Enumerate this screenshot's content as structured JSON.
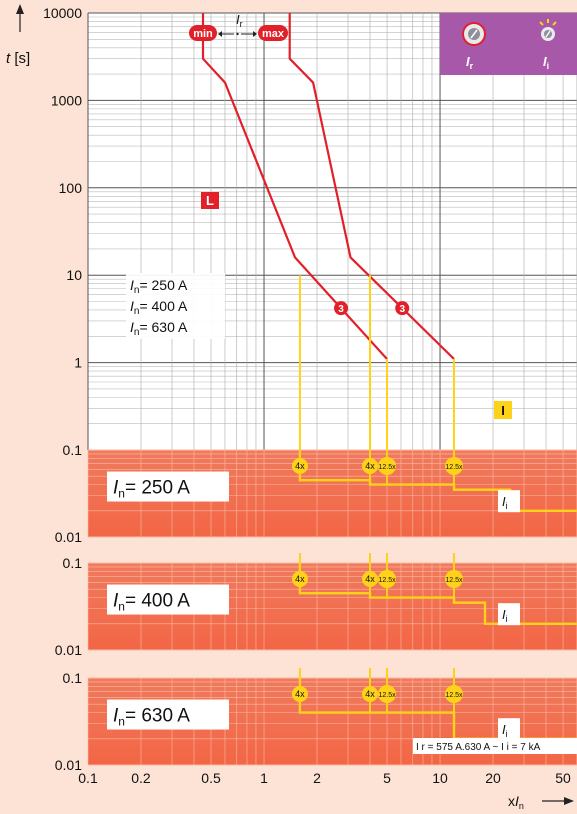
{
  "axes": {
    "y_label_sym": "t",
    "y_label_unit": "[s]",
    "x_label_prefix": "x",
    "x_label_sym": "I",
    "x_label_sub": "n",
    "y_ticks": [
      "10000",
      "1000",
      "100",
      "10",
      "1",
      "0.1",
      "0.01"
    ],
    "y_ticks_sub": [
      "0.1",
      "0.01"
    ],
    "x_ticks": [
      "0.1",
      "0.2",
      "0.5",
      "1",
      "2",
      "5",
      "10",
      "20",
      "50"
    ]
  },
  "overcurrent": {
    "ir_sym": "I",
    "ir_sub": "r",
    "min_label": "min",
    "max_label": "max",
    "l_label": "L",
    "i_label": "I",
    "marker3": "3",
    "ratings": [
      "= 250 A",
      "= 400 A",
      "= 630 A"
    ],
    "rating_sym": "I",
    "rating_sub": "n"
  },
  "selector": {
    "left_sym": "I",
    "left_sub": "r",
    "right_sym": "I",
    "right_sub": "i"
  },
  "panels": [
    {
      "label_sym": "I",
      "label_sub": "n",
      "label_text": "= 250 A",
      "ii_sym": "I",
      "ii_sub": "i",
      "markers": [
        "4x",
        "4x",
        "12.5x",
        "12.5x"
      ]
    },
    {
      "label_sym": "I",
      "label_sub": "n",
      "label_text": "= 400 A",
      "ii_sym": "I",
      "ii_sub": "i",
      "markers": [
        "4x",
        "4x",
        "12.5x",
        "12.5x"
      ]
    },
    {
      "label_sym": "I",
      "label_sub": "n",
      "label_text": "= 630 A",
      "ii_sym": "I",
      "ii_sub": "i",
      "markers": [
        "4x",
        "4x",
        "12.5x",
        "12.5x"
      ]
    }
  ],
  "footnote": "I r = 575 A.630 A ~ I i = 7 kA",
  "colors": {
    "curve": "#e2202a",
    "yellow": "#ffd21a",
    "panel": "#f26645",
    "purple": "#a758a8",
    "pink_bg": "#fde3d6"
  },
  "chart_data": {
    "type": "line",
    "x_scale": "log",
    "y_scale": "log",
    "xlim": [
      0.1,
      60
    ],
    "ylim": [
      0.1,
      10000
    ],
    "series": [
      {
        "name": "min",
        "x": [
          0.45,
          0.45,
          0.6,
          1.5,
          5
        ],
        "y": [
          10000,
          3000,
          1600,
          16,
          1.1
        ]
      },
      {
        "name": "max",
        "x": [
          1.4,
          1.4,
          1.9,
          3.1,
          12
        ],
        "y": [
          10000,
          3000,
          1600,
          16,
          1.1
        ]
      }
    ],
    "instantaneous_vertical_x": [
      1.6,
      4,
      5,
      12
    ],
    "panels": [
      {
        "name": "250 A",
        "ylim": [
          0.01,
          0.1
        ],
        "x": [
          1.6,
          1.6,
          4,
          4,
          5,
          5,
          12,
          12,
          25,
          25,
          60
        ],
        "y": [
          0.1,
          0.045,
          0.045,
          0.04,
          0.04,
          0.04,
          0.04,
          0.035,
          0.035,
          0.02,
          0.02
        ]
      },
      {
        "name": "400 A",
        "ylim": [
          0.01,
          0.1
        ],
        "x": [
          1.6,
          1.6,
          4,
          4,
          5,
          5,
          12,
          12,
          18,
          18,
          60
        ],
        "y": [
          0.1,
          0.045,
          0.045,
          0.04,
          0.04,
          0.04,
          0.04,
          0.035,
          0.035,
          0.02,
          0.02
        ]
      },
      {
        "name": "630 A",
        "ylim": [
          0.01,
          0.1
        ],
        "x": [
          1.6,
          1.6,
          4,
          4,
          5,
          5,
          12,
          12,
          60
        ],
        "y": [
          0.1,
          0.04,
          0.04,
          0.04,
          0.04,
          0.04,
          0.04,
          0.02,
          0.02
        ]
      }
    ]
  }
}
